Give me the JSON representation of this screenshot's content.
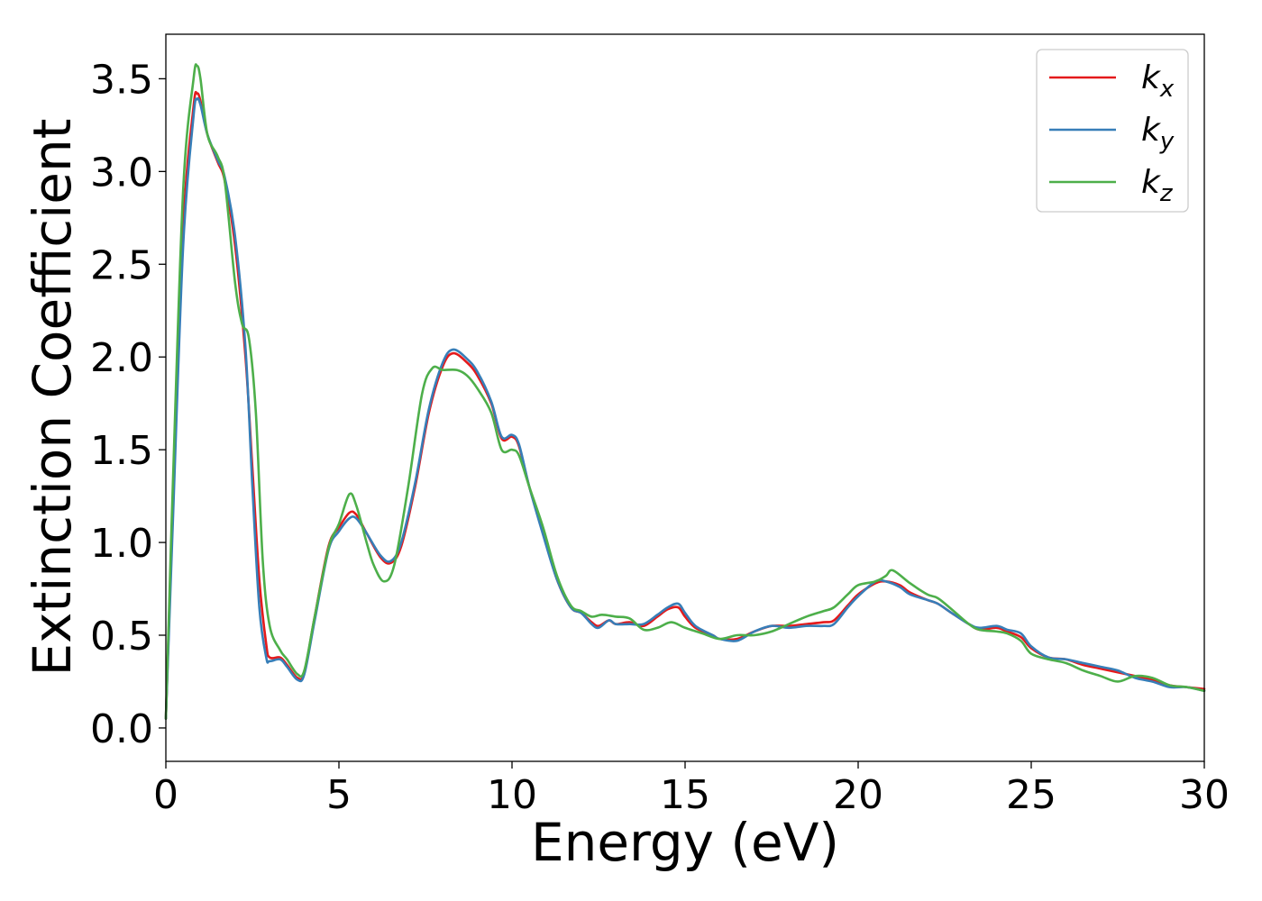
{
  "chart_data": {
    "type": "line",
    "title": "",
    "xlabel": "Energy (eV)",
    "ylabel": "Extinction Coefficient",
    "xlim": [
      0,
      30
    ],
    "ylim": [
      -0.18,
      3.74
    ],
    "xticks": [
      0,
      5,
      10,
      15,
      20,
      25,
      30
    ],
    "xtick_labels": [
      "0",
      "5",
      "10",
      "15",
      "20",
      "25",
      "30"
    ],
    "yticks": [
      0.0,
      0.5,
      1.0,
      1.5,
      2.0,
      2.5,
      3.0,
      3.5
    ],
    "ytick_labels": [
      "0.0",
      "0.5",
      "1.0",
      "1.5",
      "2.0",
      "2.5",
      "3.0",
      "3.5"
    ],
    "grid": false,
    "legend_position": "top-right",
    "series": [
      {
        "name": "kx",
        "legend_base": "k",
        "legend_sub": "x",
        "color": "#e41a1c",
        "points": [
          [
            0,
            0.05
          ],
          [
            0.2,
            1.2
          ],
          [
            0.5,
            2.7
          ],
          [
            0.8,
            3.35
          ],
          [
            0.9,
            3.42
          ],
          [
            1.0,
            3.38
          ],
          [
            1.2,
            3.2
          ],
          [
            1.5,
            3.05
          ],
          [
            1.7,
            2.95
          ],
          [
            2.0,
            2.6
          ],
          [
            2.3,
            2.0
          ],
          [
            2.5,
            1.4
          ],
          [
            2.7,
            0.8
          ],
          [
            2.9,
            0.45
          ],
          [
            3.0,
            0.38
          ],
          [
            3.3,
            0.38
          ],
          [
            3.5,
            0.34
          ],
          [
            3.8,
            0.27
          ],
          [
            4.0,
            0.3
          ],
          [
            4.3,
            0.6
          ],
          [
            4.7,
            0.98
          ],
          [
            5.0,
            1.08
          ],
          [
            5.3,
            1.16
          ],
          [
            5.5,
            1.15
          ],
          [
            5.8,
            1.05
          ],
          [
            6.2,
            0.92
          ],
          [
            6.5,
            0.89
          ],
          [
            6.8,
            0.98
          ],
          [
            7.2,
            1.3
          ],
          [
            7.6,
            1.7
          ],
          [
            8.0,
            1.95
          ],
          [
            8.3,
            2.02
          ],
          [
            8.7,
            1.97
          ],
          [
            9.0,
            1.9
          ],
          [
            9.4,
            1.75
          ],
          [
            9.7,
            1.56
          ],
          [
            10.0,
            1.57
          ],
          [
            10.2,
            1.52
          ],
          [
            10.5,
            1.3
          ],
          [
            10.9,
            1.05
          ],
          [
            11.3,
            0.8
          ],
          [
            11.7,
            0.65
          ],
          [
            12.0,
            0.62
          ],
          [
            12.3,
            0.57
          ],
          [
            12.5,
            0.55
          ],
          [
            12.8,
            0.58
          ],
          [
            13.0,
            0.56
          ],
          [
            13.4,
            0.57
          ],
          [
            13.8,
            0.55
          ],
          [
            14.2,
            0.6
          ],
          [
            14.5,
            0.64
          ],
          [
            14.8,
            0.65
          ],
          [
            15.0,
            0.6
          ],
          [
            15.3,
            0.54
          ],
          [
            15.8,
            0.5
          ],
          [
            16.0,
            0.48
          ],
          [
            16.5,
            0.48
          ],
          [
            17.0,
            0.52
          ],
          [
            17.5,
            0.55
          ],
          [
            18.0,
            0.55
          ],
          [
            18.5,
            0.56
          ],
          [
            19.0,
            0.57
          ],
          [
            19.3,
            0.58
          ],
          [
            19.7,
            0.66
          ],
          [
            20.0,
            0.72
          ],
          [
            20.5,
            0.78
          ],
          [
            20.8,
            0.79
          ],
          [
            21.2,
            0.77
          ],
          [
            21.5,
            0.73
          ],
          [
            22.0,
            0.69
          ],
          [
            22.3,
            0.67
          ],
          [
            22.7,
            0.62
          ],
          [
            23.2,
            0.56
          ],
          [
            23.5,
            0.53
          ],
          [
            24.0,
            0.54
          ],
          [
            24.3,
            0.52
          ],
          [
            24.7,
            0.49
          ],
          [
            25.0,
            0.43
          ],
          [
            25.5,
            0.38
          ],
          [
            26.0,
            0.37
          ],
          [
            26.5,
            0.34
          ],
          [
            27.0,
            0.32
          ],
          [
            27.5,
            0.3
          ],
          [
            28.0,
            0.28
          ],
          [
            28.5,
            0.26
          ],
          [
            29.0,
            0.23
          ],
          [
            29.5,
            0.22
          ],
          [
            30.0,
            0.21
          ]
        ]
      },
      {
        "name": "ky",
        "legend_base": "k",
        "legend_sub": "y",
        "color": "#377eb8",
        "points": [
          [
            0,
            0.05
          ],
          [
            0.2,
            1.1
          ],
          [
            0.5,
            2.6
          ],
          [
            0.8,
            3.3
          ],
          [
            0.9,
            3.39
          ],
          [
            1.0,
            3.36
          ],
          [
            1.2,
            3.2
          ],
          [
            1.5,
            3.06
          ],
          [
            1.7,
            2.97
          ],
          [
            2.0,
            2.65
          ],
          [
            2.3,
            2.05
          ],
          [
            2.5,
            1.3
          ],
          [
            2.7,
            0.65
          ],
          [
            2.9,
            0.38
          ],
          [
            3.0,
            0.36
          ],
          [
            3.3,
            0.37
          ],
          [
            3.5,
            0.33
          ],
          [
            3.8,
            0.26
          ],
          [
            4.0,
            0.29
          ],
          [
            4.3,
            0.58
          ],
          [
            4.7,
            0.96
          ],
          [
            5.0,
            1.06
          ],
          [
            5.3,
            1.13
          ],
          [
            5.5,
            1.13
          ],
          [
            5.8,
            1.05
          ],
          [
            6.2,
            0.93
          ],
          [
            6.5,
            0.9
          ],
          [
            6.8,
            1.0
          ],
          [
            7.2,
            1.32
          ],
          [
            7.6,
            1.72
          ],
          [
            8.0,
            1.97
          ],
          [
            8.3,
            2.04
          ],
          [
            8.7,
            1.99
          ],
          [
            9.0,
            1.92
          ],
          [
            9.4,
            1.76
          ],
          [
            9.7,
            1.57
          ],
          [
            10.0,
            1.58
          ],
          [
            10.2,
            1.53
          ],
          [
            10.5,
            1.3
          ],
          [
            10.9,
            1.04
          ],
          [
            11.3,
            0.8
          ],
          [
            11.7,
            0.65
          ],
          [
            12.0,
            0.62
          ],
          [
            12.3,
            0.56
          ],
          [
            12.5,
            0.54
          ],
          [
            12.8,
            0.58
          ],
          [
            13.0,
            0.56
          ],
          [
            13.4,
            0.56
          ],
          [
            13.8,
            0.56
          ],
          [
            14.2,
            0.61
          ],
          [
            14.5,
            0.65
          ],
          [
            14.8,
            0.67
          ],
          [
            15.0,
            0.62
          ],
          [
            15.3,
            0.55
          ],
          [
            15.8,
            0.5
          ],
          [
            16.0,
            0.48
          ],
          [
            16.5,
            0.47
          ],
          [
            17.0,
            0.52
          ],
          [
            17.5,
            0.55
          ],
          [
            18.0,
            0.54
          ],
          [
            18.5,
            0.55
          ],
          [
            19.0,
            0.55
          ],
          [
            19.3,
            0.56
          ],
          [
            19.7,
            0.65
          ],
          [
            20.0,
            0.71
          ],
          [
            20.5,
            0.79
          ],
          [
            20.8,
            0.79
          ],
          [
            21.2,
            0.76
          ],
          [
            21.5,
            0.72
          ],
          [
            22.0,
            0.69
          ],
          [
            22.3,
            0.67
          ],
          [
            22.7,
            0.62
          ],
          [
            23.2,
            0.56
          ],
          [
            23.5,
            0.54
          ],
          [
            24.0,
            0.55
          ],
          [
            24.3,
            0.53
          ],
          [
            24.7,
            0.51
          ],
          [
            25.0,
            0.44
          ],
          [
            25.5,
            0.38
          ],
          [
            26.0,
            0.37
          ],
          [
            26.5,
            0.35
          ],
          [
            27.0,
            0.33
          ],
          [
            27.5,
            0.31
          ],
          [
            28.0,
            0.27
          ],
          [
            28.5,
            0.25
          ],
          [
            29.0,
            0.22
          ],
          [
            29.5,
            0.22
          ],
          [
            30.0,
            0.2
          ]
        ]
      },
      {
        "name": "kz",
        "legend_base": "k",
        "legend_sub": "z",
        "color": "#4daf4a",
        "points": [
          [
            0,
            0.05
          ],
          [
            0.2,
            1.3
          ],
          [
            0.5,
            2.9
          ],
          [
            0.8,
            3.5
          ],
          [
            0.9,
            3.57
          ],
          [
            1.0,
            3.5
          ],
          [
            1.2,
            3.2
          ],
          [
            1.5,
            3.08
          ],
          [
            1.7,
            2.95
          ],
          [
            2.0,
            2.4
          ],
          [
            2.2,
            2.18
          ],
          [
            2.4,
            2.1
          ],
          [
            2.6,
            1.7
          ],
          [
            2.8,
            0.9
          ],
          [
            3.0,
            0.55
          ],
          [
            3.3,
            0.42
          ],
          [
            3.5,
            0.37
          ],
          [
            3.8,
            0.29
          ],
          [
            4.0,
            0.31
          ],
          [
            4.3,
            0.6
          ],
          [
            4.7,
            0.97
          ],
          [
            5.0,
            1.1
          ],
          [
            5.3,
            1.26
          ],
          [
            5.5,
            1.2
          ],
          [
            5.8,
            1.0
          ],
          [
            6.0,
            0.88
          ],
          [
            6.3,
            0.79
          ],
          [
            6.6,
            0.88
          ],
          [
            7.0,
            1.3
          ],
          [
            7.4,
            1.8
          ],
          [
            7.7,
            1.94
          ],
          [
            8.0,
            1.93
          ],
          [
            8.4,
            1.93
          ],
          [
            8.7,
            1.9
          ],
          [
            9.0,
            1.83
          ],
          [
            9.4,
            1.7
          ],
          [
            9.7,
            1.5
          ],
          [
            10.0,
            1.5
          ],
          [
            10.2,
            1.47
          ],
          [
            10.5,
            1.3
          ],
          [
            10.9,
            1.08
          ],
          [
            11.3,
            0.82
          ],
          [
            11.7,
            0.66
          ],
          [
            12.0,
            0.63
          ],
          [
            12.3,
            0.6
          ],
          [
            12.6,
            0.61
          ],
          [
            13.0,
            0.6
          ],
          [
            13.4,
            0.59
          ],
          [
            13.8,
            0.53
          ],
          [
            14.2,
            0.54
          ],
          [
            14.6,
            0.57
          ],
          [
            15.0,
            0.54
          ],
          [
            15.5,
            0.51
          ],
          [
            16.0,
            0.48
          ],
          [
            16.5,
            0.5
          ],
          [
            17.0,
            0.5
          ],
          [
            17.5,
            0.52
          ],
          [
            18.0,
            0.56
          ],
          [
            18.5,
            0.6
          ],
          [
            19.0,
            0.63
          ],
          [
            19.3,
            0.65
          ],
          [
            19.7,
            0.72
          ],
          [
            20.0,
            0.77
          ],
          [
            20.5,
            0.79
          ],
          [
            20.8,
            0.82
          ],
          [
            21.0,
            0.85
          ],
          [
            21.5,
            0.78
          ],
          [
            22.0,
            0.72
          ],
          [
            22.3,
            0.7
          ],
          [
            22.7,
            0.64
          ],
          [
            23.2,
            0.56
          ],
          [
            23.5,
            0.53
          ],
          [
            24.0,
            0.52
          ],
          [
            24.3,
            0.51
          ],
          [
            24.7,
            0.47
          ],
          [
            25.0,
            0.4
          ],
          [
            25.5,
            0.37
          ],
          [
            26.0,
            0.35
          ],
          [
            26.5,
            0.31
          ],
          [
            27.0,
            0.28
          ],
          [
            27.5,
            0.25
          ],
          [
            28.0,
            0.28
          ],
          [
            28.5,
            0.27
          ],
          [
            29.0,
            0.23
          ],
          [
            29.5,
            0.22
          ],
          [
            30.0,
            0.2
          ]
        ]
      }
    ]
  }
}
